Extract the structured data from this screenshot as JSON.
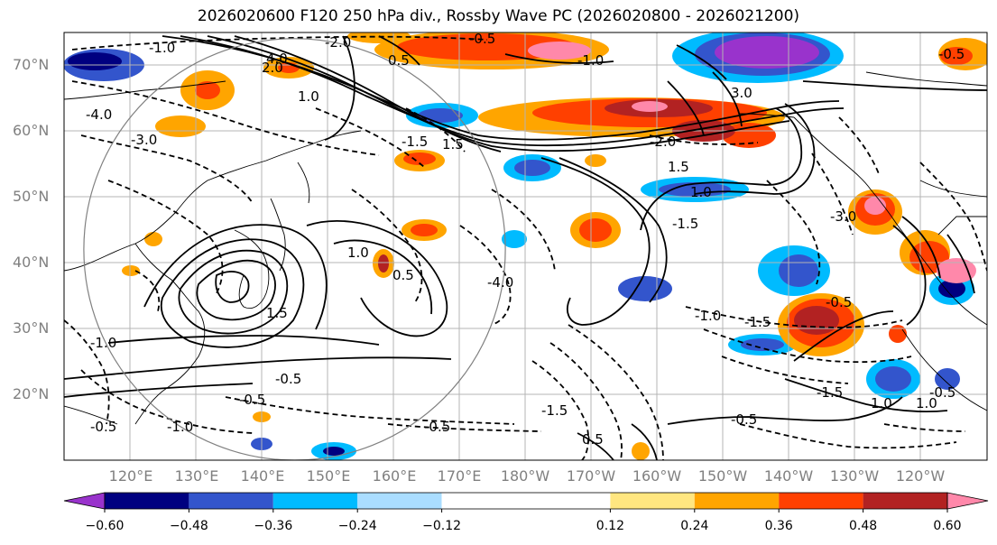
{
  "title": "2026020600 F120 250 hPa div., Rossby Wave PC (2026020800 - 2026021200)",
  "map": {
    "lat_labels": [
      "70°N",
      "60°N",
      "50°N",
      "40°N",
      "30°N",
      "20°N"
    ],
    "lon_labels": [
      "120°E",
      "130°E",
      "140°E",
      "150°E",
      "160°E",
      "170°E",
      "180°W",
      "170°W",
      "160°W",
      "150°W",
      "140°W",
      "130°W",
      "120°W"
    ],
    "contour_labels": [
      "-1.0",
      "-0.5",
      "-2.0",
      "-4.0",
      "-3.0",
      "-1.5",
      "0.5",
      "1.0",
      "1.5",
      "2.0",
      "3.0",
      "4.0",
      "-0.5",
      "-1.0",
      "-1.5",
      "-2.0",
      "-3.0",
      "1.5",
      "1.0",
      "0.5",
      "-0.5",
      "-1.0",
      "-1.5",
      "-4.0",
      "-0.5",
      "-1.5",
      "1.0",
      "-0.5",
      "-1.0",
      "-1.5",
      "-0.5",
      "-0.5",
      "1.0",
      "0.5",
      "-0.5",
      "1.0",
      "-0.5",
      "1.5",
      "-1.0"
    ],
    "circle": {
      "center_lon": 145,
      "center_lat": 42,
      "radius_deg": 32,
      "color": "#808080"
    }
  },
  "colorbar": {
    "colors": [
      "#9933cc",
      "#000080",
      "#3355cc",
      "#00bbff",
      "#aaddff",
      "#ffffff",
      "#ffe680",
      "#ffa500",
      "#ff4000",
      "#b22222",
      "#ff88aa"
    ],
    "bounds": [
      -0.72,
      -0.6,
      -0.48,
      -0.36,
      -0.24,
      -0.12,
      0.12,
      0.24,
      0.36,
      0.48,
      0.6,
      0.72
    ],
    "tick_labels": [
      "−0.60",
      "−0.48",
      "−0.36",
      "−0.24",
      "−0.12",
      "0.12",
      "0.24",
      "0.36",
      "0.48",
      "0.60"
    ]
  }
}
